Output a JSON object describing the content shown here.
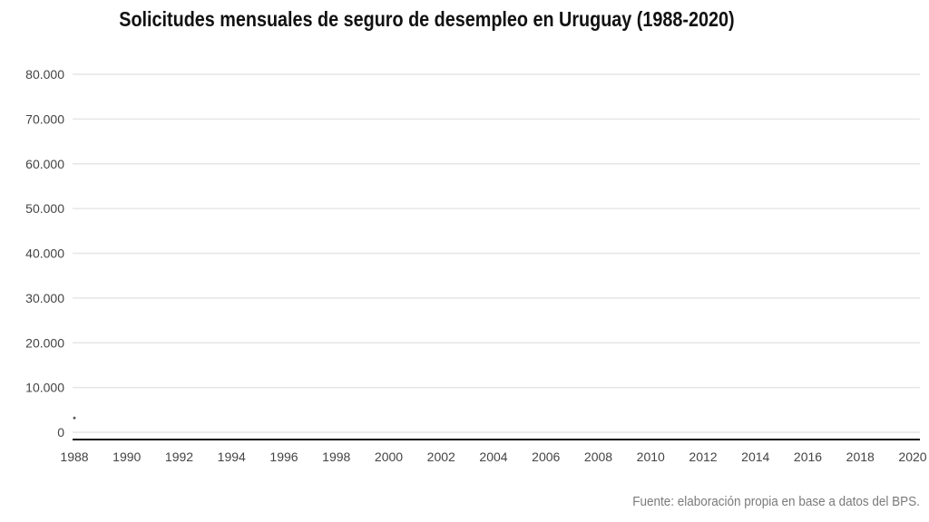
{
  "chart_data": {
    "type": "line",
    "title": "Solicitudes mensuales de seguro de desempleo en Uruguay (1988-2020)",
    "source": "Fuente: elaboración propia en base a datos del BPS.",
    "xlim": [
      1988,
      2020
    ],
    "ylim": [
      0,
      80000
    ],
    "x_ticks": [
      "1988",
      "1990",
      "1992",
      "1994",
      "1996",
      "1998",
      "2000",
      "2002",
      "2004",
      "2006",
      "2008",
      "2010",
      "2012",
      "2014",
      "2016",
      "2018",
      "2020"
    ],
    "y_ticks": [
      "0",
      "10.000",
      "20.000",
      "30.000",
      "40.000",
      "50.000",
      "60.000",
      "70.000",
      "80.000"
    ],
    "grid": true,
    "series": [
      {
        "x": [
          1988.0
        ],
        "y": [
          3200
        ],
        "color": "#555555"
      }
    ]
  }
}
